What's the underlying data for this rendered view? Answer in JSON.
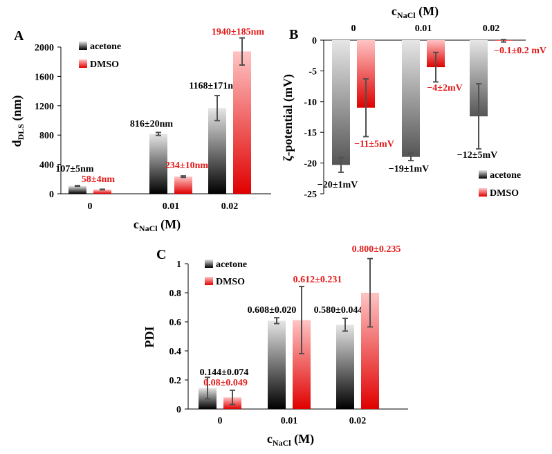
{
  "colors": {
    "acetone_dark": "#000000",
    "acetone_light": "#e6e6e6",
    "dmso_dark": "#e00000",
    "dmso_light": "#ffc4c4",
    "error_bar": "#505050",
    "dmso_text": "#e31b1b"
  },
  "chart_data": [
    {
      "panel": "A",
      "type": "bar",
      "title": "",
      "categories": [
        "0",
        "0.01",
        "0.02"
      ],
      "xlabel": "c",
      "xlabel_sub": "NaCl",
      "xlabel_unit": " (M)",
      "ylabel": "d",
      "ylabel_sub": "DLS",
      "ylabel_unit": " (nm)",
      "ylim": [
        0,
        2000
      ],
      "yticks": [
        "0",
        "400",
        "800",
        "1200",
        "1600",
        "2000"
      ],
      "legend": "top-left",
      "series": [
        {
          "name": "acetone",
          "values": [
            107,
            816,
            1168
          ],
          "errors": [
            5,
            20,
            171
          ],
          "labels": [
            "107±5nm",
            "816±20nm",
            "1168±171nm"
          ]
        },
        {
          "name": "DMSO",
          "values": [
            58,
            234,
            1940
          ],
          "errors": [
            4,
            10,
            185
          ],
          "labels": [
            "58±4nm",
            "234±10nm",
            "1940±185nm"
          ]
        }
      ]
    },
    {
      "panel": "B",
      "type": "bar",
      "title": "",
      "categories": [
        "0",
        "0.01",
        "0.02"
      ],
      "xlabel": "c",
      "xlabel_sub": "NaCl",
      "xlabel_unit": " (M)",
      "ylabel": "ζ-potential (mV)",
      "ylim": [
        -25,
        0
      ],
      "yticks": [
        "0",
        "-5",
        "-10",
        "-15",
        "-20",
        "-25"
      ],
      "legend": "bottom-right",
      "series": [
        {
          "name": "acetone",
          "values": [
            -20.3,
            -19,
            -12.4
          ],
          "errors": [
            1.2,
            0.6,
            5.3
          ],
          "labels": [
            "−20±1mV",
            "−19±1mV",
            "−12±5mV"
          ]
        },
        {
          "name": "DMSO",
          "values": [
            -11,
            -4.4,
            -0.1
          ],
          "errors": [
            4.7,
            2.4,
            0.2
          ],
          "labels": [
            "−11±5mV",
            "−4±2mV",
            "−0.1±0.2 mV"
          ]
        }
      ]
    },
    {
      "panel": "C",
      "type": "bar",
      "title": "",
      "categories": [
        "0",
        "0.01",
        "0.02"
      ],
      "xlabel": "c",
      "xlabel_sub": "NaCl",
      "xlabel_unit": " (M)",
      "ylabel": "PDI",
      "ylim": [
        0,
        1
      ],
      "yticks": [
        "0",
        "0.2",
        "0.4",
        "0.6",
        "0.8",
        "1"
      ],
      "legend": "top-left",
      "series": [
        {
          "name": "acetone",
          "values": [
            0.144,
            0.608,
            0.58
          ],
          "errors": [
            0.074,
            0.02,
            0.044
          ],
          "labels": [
            "0.144±0.074",
            "0.608±0.020",
            "0.580±0.044"
          ]
        },
        {
          "name": "DMSO",
          "values": [
            0.08,
            0.612,
            0.8
          ],
          "errors": [
            0.049,
            0.231,
            0.235
          ],
          "labels": [
            "0.08±0.049",
            "0.612±0.231",
            "0.800±0.235"
          ]
        }
      ]
    }
  ]
}
